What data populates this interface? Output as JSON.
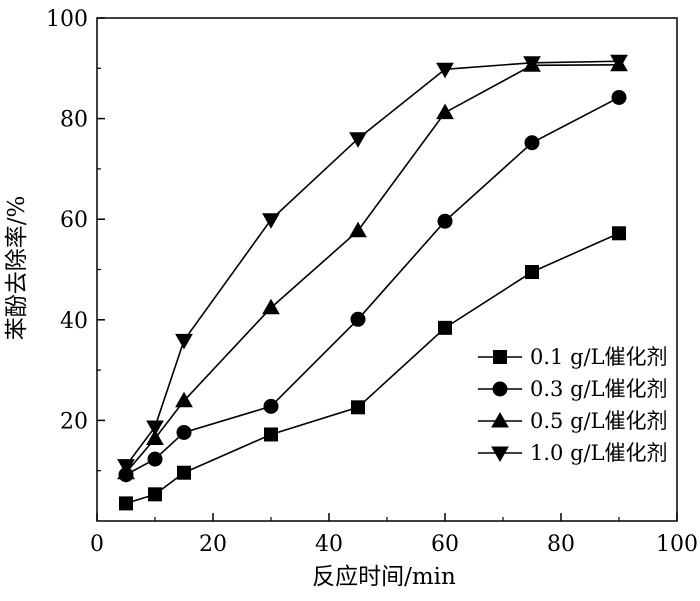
{
  "chart_data": {
    "type": "line",
    "xlabel": "反应时间/min",
    "ylabel": "苯酚去除率/%",
    "xlim": [
      0,
      100
    ],
    "ylim": [
      0,
      100
    ],
    "x_ticks": [
      "0",
      "20",
      "40",
      "60",
      "80",
      "100"
    ],
    "y_ticks": [
      "20",
      "40",
      "60",
      "80",
      "100"
    ],
    "grid": false,
    "legend_position": "right",
    "x": [
      5,
      10,
      15,
      30,
      45,
      60,
      75,
      90
    ],
    "series": [
      {
        "name": "0.1 g/L催化剂",
        "marker": "square",
        "values": [
          3.5,
          5.3,
          9.6,
          17.2,
          22.6,
          38.4,
          49.5,
          57.2
        ]
      },
      {
        "name": "0.3 g/L催化剂",
        "marker": "circle",
        "values": [
          9.2,
          12.3,
          17.6,
          22.8,
          40.1,
          59.6,
          75.2,
          84.2
        ]
      },
      {
        "name": "0.5 g/L催化剂",
        "marker": "triangle-up",
        "values": [
          9.6,
          16.4,
          23.9,
          42.4,
          57.7,
          81.2,
          90.6,
          90.7
        ]
      },
      {
        "name": "1.0 g/L催化剂",
        "marker": "triangle-down",
        "values": [
          11.0,
          18.7,
          35.9,
          59.9,
          76.0,
          89.8,
          91.1,
          91.4
        ]
      }
    ]
  }
}
